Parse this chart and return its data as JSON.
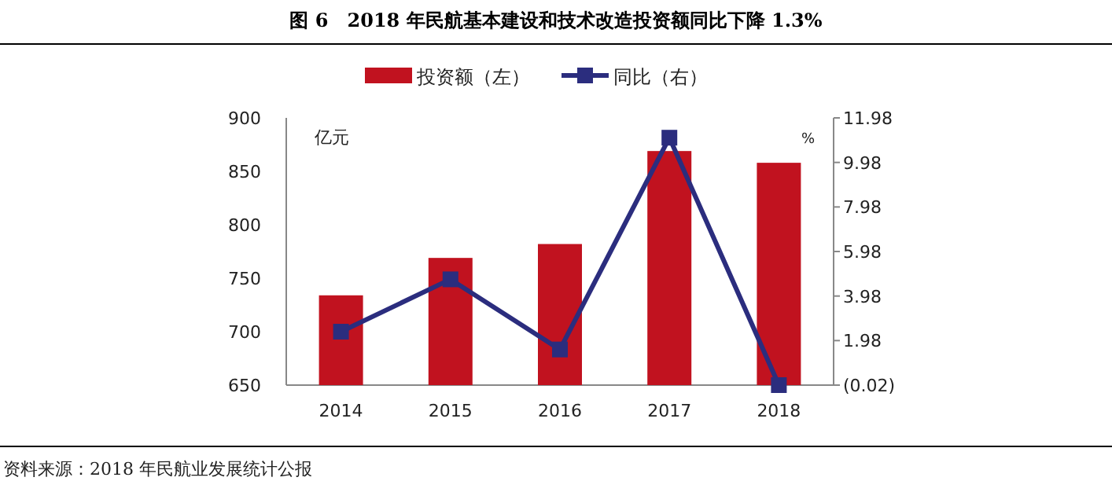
{
  "chart_data": {
    "type": "bar",
    "title": "图 6　2018 年民航基本建设和技术改造投资额同比下降 1.3%",
    "ylabel": "亿元",
    "y2label": "%",
    "categories": [
      "2014",
      "2015",
      "2016",
      "2017",
      "2018"
    ],
    "series": [
      {
        "name": "投资额（左）",
        "color": "#c1121f",
        "values": [
          734,
          769,
          782,
          869,
          858
        ]
      },
      {
        "name": "同比（右）",
        "type": "line",
        "axis": "y2",
        "color": "#2b2d7e",
        "marker": "square",
        "values": [
          2.38,
          4.73,
          1.58,
          11.09,
          -0.02
        ]
      }
    ],
    "ylim": [
      650,
      900
    ],
    "yticks": [
      650,
      700,
      750,
      800,
      850,
      900
    ],
    "y2lim": [
      -0.02,
      11.98
    ],
    "y2ticks": [
      {
        "value": -0.02,
        "label": "(0.02)"
      },
      1.98,
      3.98,
      5.98,
      7.98,
      9.98,
      11.98
    ],
    "legend": "top",
    "grid": false,
    "annotations": [
      "资料来源：2018 年民航业发展统计公报"
    ]
  }
}
